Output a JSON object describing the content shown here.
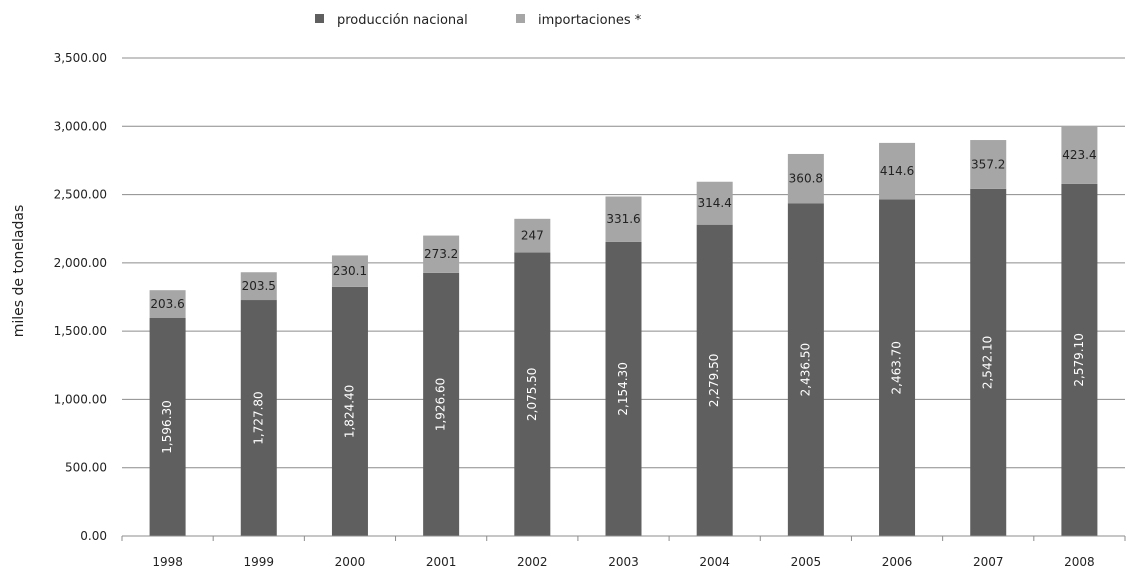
{
  "chart_data": {
    "type": "bar",
    "stacked": true,
    "categories": [
      "1998",
      "1999",
      "2000",
      "2001",
      "2002",
      "2003",
      "2004",
      "2005",
      "2006",
      "2007",
      "2008"
    ],
    "series": [
      {
        "name": "producción nacional",
        "color": "#5f5f5f",
        "values": [
          1596.3,
          1727.8,
          1824.4,
          1926.6,
          2075.5,
          2154.3,
          2279.5,
          2436.5,
          2463.7,
          2542.1,
          2579.1
        ],
        "labels": [
          "1,596.30",
          "1,727.80",
          "1,824.40",
          "1,926.60",
          "2,075.50",
          "2,154.30",
          "2,279.50",
          "2,436.50",
          "2,463.70",
          "2,542.10",
          "2,579.10"
        ]
      },
      {
        "name": "importaciones  *",
        "color": "#a6a6a6",
        "values": [
          203.6,
          203.5,
          230.1,
          273.2,
          247,
          331.6,
          314.4,
          360.8,
          414.6,
          357.2,
          423.4
        ],
        "labels": [
          "203.6",
          "203.5",
          "230.1",
          "273.2",
          "247",
          "331.6",
          "314.4",
          "360.8",
          "414.6",
          "357.2",
          "423.4"
        ]
      }
    ],
    "ylabel": "miles de toneladas",
    "ylim": [
      0,
      3500
    ],
    "yticks": [
      "0.00",
      "500.00",
      "1,000.00",
      "1,500.00",
      "2,000.00",
      "2,500.00",
      "3,000.00",
      "3,500.00"
    ],
    "grid": true,
    "legend_position": "top"
  }
}
